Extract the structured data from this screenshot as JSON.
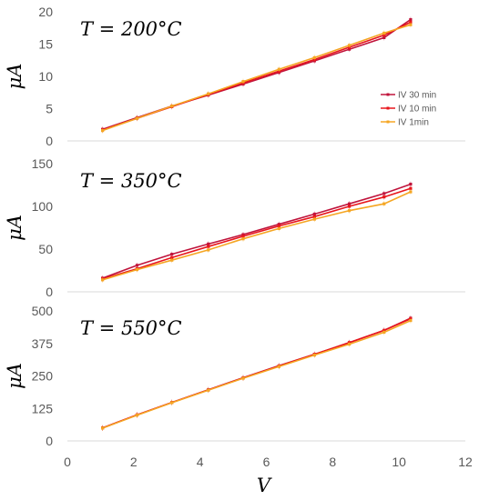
{
  "chart_data": [
    {
      "type": "line",
      "annotation": "T = 200°C",
      "ylabel": "μA",
      "ylim": [
        0,
        20
      ],
      "yticks": [
        0,
        5,
        10,
        15,
        20
      ],
      "series": [
        {
          "name": "IV 30 min",
          "color": "#c0143c",
          "x": [
            1.06,
            2.1,
            3.15,
            4.25,
            5.3,
            6.38,
            7.45,
            8.5,
            9.55,
            10.35
          ],
          "y": [
            1.8,
            3.6,
            5.4,
            7.1,
            8.8,
            10.6,
            12.4,
            14.2,
            16.0,
            18.8
          ]
        },
        {
          "name": "IV 10 min",
          "color": "#e8161c",
          "x": [
            1.06,
            2.1,
            3.15,
            4.25,
            5.3,
            6.38,
            7.45,
            8.5,
            9.55,
            10.35
          ],
          "y": [
            1.7,
            3.5,
            5.3,
            7.2,
            9.0,
            10.8,
            12.6,
            14.5,
            16.4,
            18.4
          ]
        },
        {
          "name": "IV 1min",
          "color": "#f5a623",
          "x": [
            1.06,
            2.1,
            3.15,
            4.25,
            5.3,
            6.38,
            7.45,
            8.5,
            9.55,
            10.35
          ],
          "y": [
            1.6,
            3.5,
            5.4,
            7.3,
            9.2,
            11.1,
            12.9,
            14.8,
            16.7,
            18.0
          ]
        }
      ],
      "legend": "right"
    },
    {
      "type": "line",
      "annotation": "T = 350°C",
      "ylabel": "μA",
      "ylim": [
        0,
        150
      ],
      "yticks": [
        0,
        50,
        100,
        150
      ],
      "series": [
        {
          "name": "IV 30 min",
          "color": "#c0143c",
          "x": [
            1.06,
            2.1,
            3.15,
            4.25,
            5.3,
            6.38,
            7.45,
            8.5,
            9.55,
            10.35
          ],
          "y": [
            16,
            31,
            44,
            56,
            67,
            79,
            91,
            103,
            115,
            126
          ]
        },
        {
          "name": "IV 10 min",
          "color": "#e8161c",
          "x": [
            1.06,
            2.1,
            3.15,
            4.25,
            5.3,
            6.38,
            7.45,
            8.5,
            9.55,
            10.35
          ],
          "y": [
            15,
            27,
            40,
            53,
            65,
            77,
            88,
            100,
            111,
            121
          ]
        },
        {
          "name": "IV 1min",
          "color": "#f5a623",
          "x": [
            1.06,
            2.1,
            3.15,
            4.25,
            5.3,
            6.38,
            7.45,
            8.5,
            9.55,
            10.35
          ],
          "y": [
            14,
            26,
            37,
            49,
            62,
            74,
            85,
            95,
            103,
            117
          ]
        }
      ]
    },
    {
      "type": "line",
      "annotation": "T = 550°C",
      "ylabel": "μA",
      "xlabel": "V",
      "xlim": [
        0,
        12
      ],
      "xticks": [
        0,
        2,
        4,
        6,
        8,
        10,
        12
      ],
      "ylim": [
        0,
        500
      ],
      "yticks": [
        0,
        125,
        250,
        375,
        500
      ],
      "series": [
        {
          "name": "IV 30 min",
          "color": "#c0143c",
          "x": [
            1.06,
            2.1,
            3.15,
            4.25,
            5.3,
            6.38,
            7.45,
            8.5,
            9.55,
            10.35
          ],
          "y": [
            50,
            100,
            148,
            197,
            243,
            289,
            333,
            378,
            425,
            472
          ]
        },
        {
          "name": "IV 10 min",
          "color": "#e8161c",
          "x": [
            1.06,
            2.1,
            3.15,
            4.25,
            5.3,
            6.38,
            7.45,
            8.5,
            9.55,
            10.35
          ],
          "y": [
            50,
            100,
            148,
            196,
            242,
            288,
            333,
            378,
            425,
            470
          ]
        },
        {
          "name": "IV 1min",
          "color": "#f5a623",
          "x": [
            1.06,
            2.1,
            3.15,
            4.25,
            5.3,
            6.38,
            7.45,
            8.5,
            9.55,
            10.35
          ],
          "y": [
            49,
            99,
            147,
            195,
            241,
            286,
            330,
            372,
            418,
            463
          ]
        }
      ]
    }
  ]
}
